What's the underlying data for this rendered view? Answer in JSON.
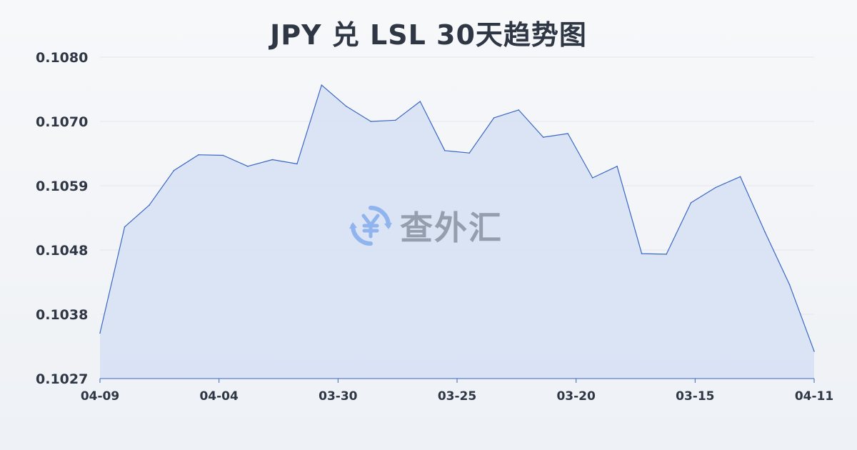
{
  "title": "JPY 兑 LSL 30天趋势图",
  "watermark": {
    "text": "查外汇",
    "icon": "yen-exchange-icon"
  },
  "colors": {
    "line": "#3a67c4",
    "fill": "#d6e1f5",
    "grid": "#e3e6eb",
    "text": "#2f3745"
  },
  "chart_data": {
    "type": "area",
    "title": "JPY 兑 LSL 30天趋势图",
    "xlabel": "",
    "ylabel": "",
    "grid": true,
    "ylim": [
      0.1027,
      0.108
    ],
    "yticks": [
      "0.1080",
      "0.1070",
      "0.1059",
      "0.1048",
      "0.1038",
      "0.1027"
    ],
    "xticks": [
      "04-09",
      "04-04",
      "03-30",
      "03-25",
      "03-20",
      "03-15",
      "04-11"
    ],
    "values": [
      0.10345,
      0.1052,
      0.10556,
      0.10613,
      0.10639,
      0.10638,
      0.1062,
      0.10631,
      0.10624,
      0.10754,
      0.10719,
      0.10694,
      0.10696,
      0.10727,
      0.10646,
      0.10642,
      0.107,
      0.10713,
      0.10668,
      0.10674,
      0.10601,
      0.1062,
      0.10476,
      0.10475,
      0.1056,
      0.10585,
      0.10603,
      0.10512,
      0.10425,
      0.10315
    ]
  }
}
